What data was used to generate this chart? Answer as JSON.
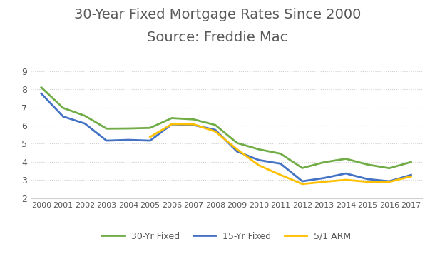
{
  "title_line1": "30-Year Fixed Mortgage Rates Since 2000",
  "title_line2": "Source: Freddie Mac",
  "years": [
    2000,
    2001,
    2002,
    2003,
    2004,
    2005,
    2006,
    2007,
    2008,
    2009,
    2010,
    2011,
    2012,
    2013,
    2014,
    2015,
    2016,
    2017
  ],
  "series_30yr": [
    8.1,
    6.97,
    6.54,
    5.83,
    5.84,
    5.87,
    6.41,
    6.34,
    6.03,
    5.04,
    4.69,
    4.45,
    3.66,
    3.98,
    4.17,
    3.85,
    3.65,
    3.99
  ],
  "series_15yr": [
    7.76,
    6.5,
    6.11,
    5.17,
    5.21,
    5.17,
    6.07,
    6.03,
    5.76,
    4.57,
    4.1,
    3.9,
    2.93,
    3.11,
    3.36,
    3.05,
    2.93,
    3.28
  ],
  "series_arm": [
    null,
    null,
    null,
    null,
    null,
    5.37,
    6.08,
    6.07,
    5.67,
    4.69,
    3.81,
    3.28,
    2.78,
    2.9,
    3.01,
    2.9,
    2.9,
    3.2
  ],
  "color_30yr": "#70ad47",
  "color_15yr": "#4472c4",
  "color_arm": "#ffc000",
  "ylim": [
    2,
    9
  ],
  "yticks": [
    2,
    3,
    4,
    5,
    6,
    7,
    8,
    9
  ],
  "background_color": "#ffffff",
  "title_color": "#595959",
  "title_fontsize": 14,
  "tick_color": "#595959",
  "legend_labels": [
    "30-Yr Fixed",
    "15-Yr Fixed",
    "5/1 ARM"
  ],
  "linewidth": 2.0,
  "grid_color": "#d0d0d0",
  "grid_style": ":"
}
